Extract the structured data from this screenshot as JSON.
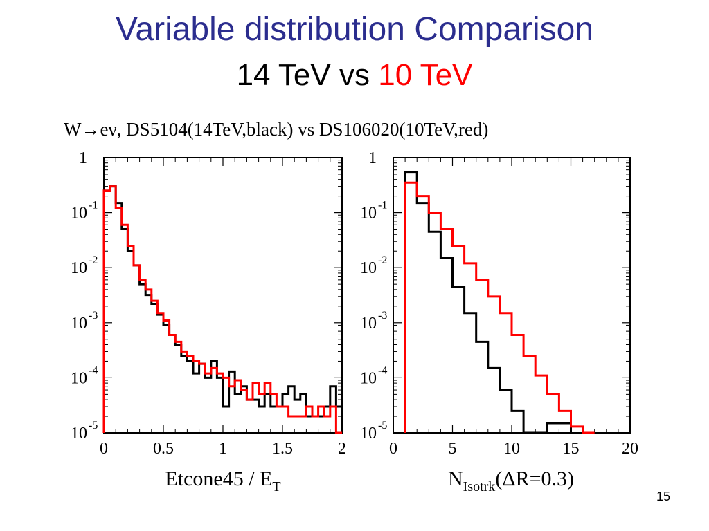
{
  "slide": {
    "title": "Variable distribution Comparison",
    "subtitle_part1": "14 TeV vs",
    "subtitle_part2": "10 TeV",
    "subtitle_part2_color": "#ff0000",
    "page_number": "15"
  },
  "figure": {
    "heading": "W→eν, DS5104(14TeV,black) vs DS106020(10TeV,red)"
  },
  "chart_data": [
    {
      "type": "line",
      "step": true,
      "xlabel_main": "Etcone45 / E",
      "xlabel_sub": "T",
      "xlim": [
        0,
        2
      ],
      "ylim_log10": [
        -5,
        0
      ],
      "log_y": true,
      "x_ticks": [
        "0",
        "0.5",
        "1",
        "1.5",
        "2"
      ],
      "y_ticks": [
        {
          "base": "1",
          "exp": ""
        },
        {
          "base": "10",
          "exp": "-1"
        },
        {
          "base": "10",
          "exp": "-2"
        },
        {
          "base": "10",
          "exp": "-3"
        },
        {
          "base": "10",
          "exp": "-4"
        },
        {
          "base": "10",
          "exp": "-5"
        }
      ],
      "series": [
        {
          "color": "#000000",
          "edges": [
            0,
            0.05,
            0.1,
            0.15,
            0.2,
            0.25,
            0.3,
            0.35,
            0.4,
            0.45,
            0.5,
            0.55,
            0.6,
            0.65,
            0.7,
            0.75,
            0.8,
            0.85,
            0.9,
            0.95,
            1.0,
            1.05,
            1.1,
            1.15,
            1.2,
            1.25,
            1.3,
            1.35,
            1.4,
            1.45,
            1.5,
            1.55,
            1.6,
            1.65,
            1.7,
            1.75,
            1.8,
            1.85,
            1.9,
            1.95,
            2.0
          ],
          "values": [
            0.25,
            0.3,
            0.15,
            0.05,
            0.02,
            0.011,
            0.005,
            0.0032,
            0.0022,
            0.0014,
            0.0009,
            0.0006,
            0.0004,
            0.00025,
            0.0002,
            0.00012,
            0.00018,
            0.0001,
            0.0002,
            0.0001,
            3e-05,
            0.00013,
            5e-05,
            7e-05,
            4e-05,
            4e-05,
            3e-05,
            5e-05,
            3e-05,
            3e-05,
            5e-05,
            7e-05,
            4e-05,
            5e-05,
            2e-05,
            2e-05,
            2e-05,
            3e-05,
            7e-05,
            3e-05
          ]
        },
        {
          "color": "#ff0000",
          "edges": [
            0,
            0.05,
            0.1,
            0.15,
            0.2,
            0.25,
            0.3,
            0.35,
            0.4,
            0.45,
            0.5,
            0.55,
            0.6,
            0.65,
            0.7,
            0.75,
            0.8,
            0.85,
            0.9,
            0.95,
            1.0,
            1.05,
            1.1,
            1.15,
            1.2,
            1.25,
            1.3,
            1.35,
            1.4,
            1.45,
            1.5,
            1.55,
            1.6,
            1.65,
            1.7,
            1.75,
            1.8,
            1.85,
            1.9,
            1.95,
            2.0
          ],
          "values": [
            0.25,
            0.3,
            0.12,
            0.06,
            0.025,
            0.011,
            0.006,
            0.004,
            0.0025,
            0.0015,
            0.0011,
            0.0006,
            0.00045,
            0.0003,
            0.00025,
            0.0002,
            0.00018,
            0.00012,
            0.00015,
            0.00012,
            0.0001,
            7e-05,
            9e-05,
            6e-05,
            4e-05,
            8e-05,
            5e-05,
            8e-05,
            5e-05,
            3e-05,
            3e-05,
            2e-05,
            2e-05,
            2e-05,
            3e-05,
            2e-05,
            3e-05,
            2e-05,
            3e-05,
            1e-05
          ]
        }
      ]
    },
    {
      "type": "line",
      "step": true,
      "xlabel_main": "N",
      "xlabel_sub": "Isotrk",
      "xlabel_tail": "(ΔR=0.3)",
      "xlim": [
        0,
        20
      ],
      "ylim_log10": [
        -5,
        0
      ],
      "log_y": true,
      "x_ticks": [
        "0",
        "5",
        "10",
        "15",
        "20"
      ],
      "y_ticks": [
        {
          "base": "1",
          "exp": ""
        },
        {
          "base": "10",
          "exp": "-1"
        },
        {
          "base": "10",
          "exp": "-2"
        },
        {
          "base": "10",
          "exp": "-3"
        },
        {
          "base": "10",
          "exp": "-4"
        },
        {
          "base": "10",
          "exp": "-5"
        }
      ],
      "series": [
        {
          "color": "#000000",
          "edges": [
            1,
            2,
            3,
            4,
            5,
            6,
            7,
            8,
            9,
            10,
            11,
            12,
            13,
            14,
            15
          ],
          "values": [
            0.55,
            0.15,
            0.045,
            0.015,
            0.0045,
            0.0015,
            0.00045,
            0.00015,
            6e-05,
            2.5e-05,
            1e-05,
            6.5e-06,
            1.5e-05,
            1.5e-05
          ]
        },
        {
          "color": "#ff0000",
          "edges": [
            1,
            2,
            3,
            4,
            5,
            6,
            7,
            8,
            9,
            10,
            11,
            12,
            13,
            14,
            15,
            16,
            17
          ],
          "values": [
            0.35,
            0.2,
            0.1,
            0.05,
            0.025,
            0.012,
            0.006,
            0.003,
            0.0015,
            0.0006,
            0.00025,
            0.00011,
            5e-05,
            2.5e-05,
            1.3e-05,
            6.5e-06
          ]
        }
      ]
    }
  ]
}
